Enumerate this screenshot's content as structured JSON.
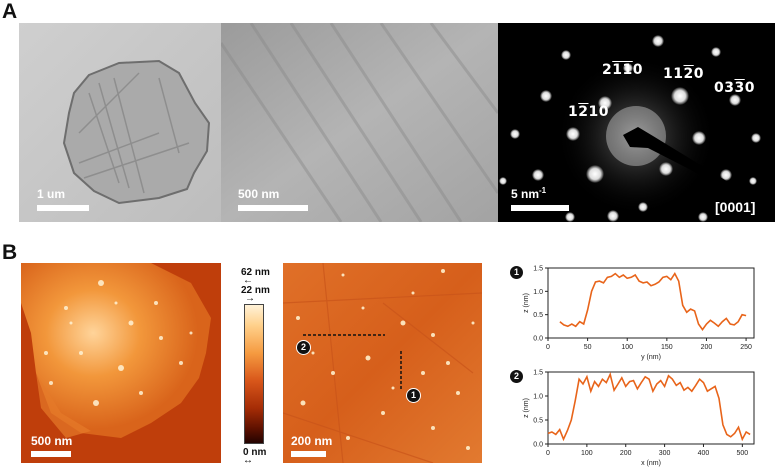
{
  "panels": {
    "a_label": "A",
    "b_label": "B"
  },
  "tem": {
    "scale_bar_1": "1 um",
    "scale_bar_2": "500 nm",
    "scale_bar_3": "5 nm",
    "scale_bar_3_sup": "-1",
    "zone_axis": "[0001]",
    "miller_indices": [
      {
        "pre": "2",
        "bar1": "1",
        "bar2": "1",
        "post": "0"
      },
      {
        "pre": "11",
        "bar1": "2",
        "post": "0"
      },
      {
        "pre": "1",
        "bar1": "2",
        "post": "10"
      },
      {
        "pre": "03",
        "bar1": "3",
        "post": "0"
      }
    ]
  },
  "afm": {
    "scale_bar_1": "500 nm",
    "scale_bar_2": "200 nm",
    "colorbar_top_1": "62 nm",
    "colorbar_top_2": "22 nm",
    "colorbar_bottom": "0 nm",
    "markers": [
      "1",
      "2"
    ]
  },
  "colors": {
    "afm_dark": "#3a0800",
    "afm_mid": "#d2520f",
    "afm_light": "#ffe9bf",
    "profile_line": "#e8641a"
  },
  "chart_data": [
    {
      "type": "line",
      "marker": "1",
      "xlabel": "y (nm)",
      "ylabel": "z (nm)",
      "xlim": [
        0,
        260
      ],
      "ylim": [
        0,
        1.5
      ],
      "xticks": [
        "0",
        "50",
        "100",
        "150",
        "200",
        "250"
      ],
      "yticks": [
        "0.0",
        "0.5",
        "1.0",
        "1.5"
      ],
      "series": [
        {
          "x": [
            15,
            20,
            25,
            30,
            35,
            40,
            45,
            50,
            55,
            60,
            65,
            70,
            75,
            80,
            85,
            90,
            95,
            100,
            105,
            110,
            115,
            120,
            125,
            130,
            135,
            140,
            145,
            150,
            155,
            160,
            165,
            170,
            175,
            180,
            185,
            190,
            195,
            200,
            205,
            210,
            215,
            220,
            225,
            230,
            235,
            240,
            245,
            250
          ],
          "y": [
            0.35,
            0.28,
            0.25,
            0.3,
            0.25,
            0.35,
            0.3,
            0.6,
            1.0,
            1.2,
            1.22,
            1.18,
            1.3,
            1.32,
            1.38,
            1.3,
            1.35,
            1.28,
            1.3,
            1.35,
            1.22,
            1.18,
            1.2,
            1.12,
            1.15,
            1.2,
            1.3,
            1.32,
            1.25,
            1.38,
            1.22,
            0.7,
            0.55,
            0.62,
            0.58,
            0.3,
            0.18,
            0.3,
            0.38,
            0.32,
            0.25,
            0.35,
            0.42,
            0.3,
            0.28,
            0.35,
            0.5,
            0.48
          ]
        }
      ]
    },
    {
      "type": "line",
      "marker": "2",
      "xlabel": "x (nm)",
      "ylabel": "z (nm)",
      "xlim": [
        0,
        530
      ],
      "ylim": [
        0,
        1.5
      ],
      "xticks": [
        "0",
        "100",
        "200",
        "300",
        "400",
        "500"
      ],
      "yticks": [
        "0.0",
        "0.5",
        "1.0",
        "1.5"
      ],
      "series": [
        {
          "x": [
            0,
            10,
            20,
            30,
            40,
            50,
            60,
            70,
            80,
            90,
            100,
            110,
            120,
            130,
            140,
            150,
            160,
            170,
            180,
            190,
            200,
            210,
            220,
            230,
            240,
            250,
            260,
            270,
            280,
            290,
            300,
            310,
            320,
            330,
            340,
            350,
            360,
            370,
            380,
            390,
            400,
            410,
            420,
            430,
            440,
            450,
            460,
            470,
            480,
            490,
            500,
            510,
            520
          ],
          "y": [
            0.22,
            0.25,
            0.2,
            0.3,
            0.1,
            0.28,
            0.5,
            0.9,
            1.35,
            1.25,
            1.4,
            1.1,
            1.3,
            1.2,
            1.35,
            1.28,
            1.45,
            1.12,
            1.25,
            1.38,
            1.2,
            1.3,
            1.32,
            1.15,
            1.28,
            1.4,
            1.35,
            1.1,
            1.25,
            1.32,
            1.2,
            1.42,
            1.35,
            1.22,
            1.28,
            1.12,
            1.18,
            1.1,
            1.22,
            1.35,
            1.28,
            1.1,
            1.15,
            1.2,
            0.95,
            0.4,
            0.2,
            0.15,
            0.22,
            0.35,
            0.1,
            0.25,
            0.2
          ]
        }
      ]
    }
  ]
}
